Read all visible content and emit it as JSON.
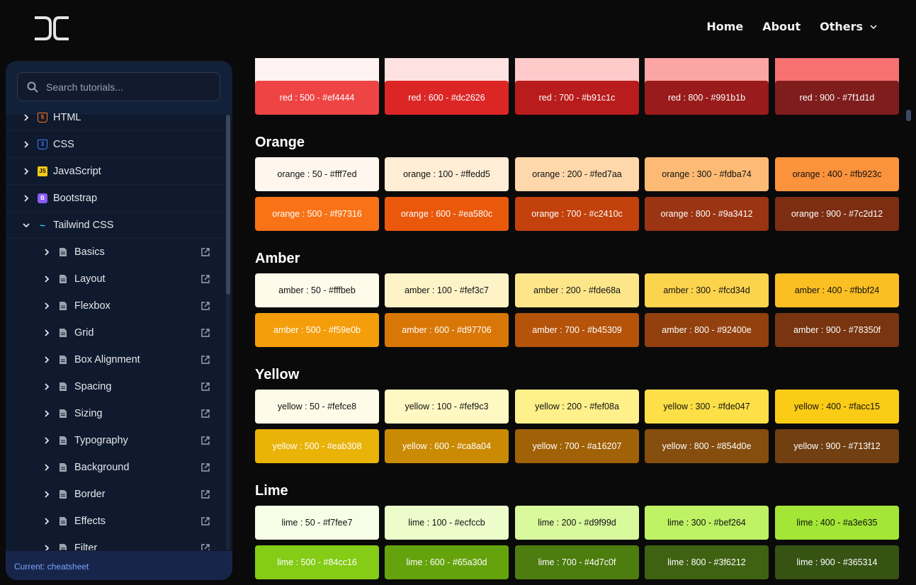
{
  "nav": {
    "home": "Home",
    "about": "About",
    "others": "Others"
  },
  "search": {
    "placeholder": "Search tutorials..."
  },
  "sidebar": {
    "top_items": [
      {
        "label": "HTML",
        "icon": "html5-icon",
        "color": "#f97316"
      },
      {
        "label": "CSS",
        "icon": "css3-icon",
        "color": "#3b82f6"
      },
      {
        "label": "JavaScript",
        "icon": "javascript-icon",
        "color": "#facc15"
      },
      {
        "label": "Bootstrap",
        "icon": "bootstrap-icon",
        "color": "#8b5cf6"
      },
      {
        "label": "Tailwind CSS",
        "icon": "tailwind-icon",
        "color": "#38bdf8"
      }
    ],
    "sub_items": [
      "Basics",
      "Layout",
      "Flexbox",
      "Grid",
      "Box Alignment",
      "Spacing",
      "Sizing",
      "Typography",
      "Background",
      "Border",
      "Effects",
      "Filter"
    ],
    "current": "Current: cheatsheet"
  },
  "palettes": {
    "red": {
      "cells": [
        {
          "label": "",
          "bg": "#fef2f2",
          "fg": "#000"
        },
        {
          "label": "",
          "bg": "#fee2e2",
          "fg": "#000"
        },
        {
          "label": "",
          "bg": "#fecaca",
          "fg": "#000"
        },
        {
          "label": "",
          "bg": "#fca5a5",
          "fg": "#000"
        },
        {
          "label": "",
          "bg": "#f87171",
          "fg": "#000"
        },
        {
          "label": "red : 500 - #ef4444",
          "bg": "#ef4444",
          "fg": "#fff"
        },
        {
          "label": "red : 600 - #dc2626",
          "bg": "#dc2626",
          "fg": "#fff"
        },
        {
          "label": "red : 700 - #b91c1c",
          "bg": "#b91c1c",
          "fg": "#fff"
        },
        {
          "label": "red : 800 - #991b1b",
          "bg": "#991b1b",
          "fg": "#fff"
        },
        {
          "label": "red : 900 - #7f1d1d",
          "bg": "#7f1d1d",
          "fg": "#fff"
        }
      ]
    },
    "orange": {
      "title": "Orange",
      "cells": [
        {
          "label": "orange : 50 - #fff7ed",
          "bg": "#fff7ed",
          "fg": "#111"
        },
        {
          "label": "orange : 100 - #ffedd5",
          "bg": "#ffedd5",
          "fg": "#111"
        },
        {
          "label": "orange : 200 - #fed7aa",
          "bg": "#fed7aa",
          "fg": "#111"
        },
        {
          "label": "orange : 300 - #fdba74",
          "bg": "#fdba74",
          "fg": "#111"
        },
        {
          "label": "orange : 400 - #fb923c",
          "bg": "#fb923c",
          "fg": "#111"
        },
        {
          "label": "orange : 500 - #f97316",
          "bg": "#f97316",
          "fg": "#fff"
        },
        {
          "label": "orange : 600 - #ea580c",
          "bg": "#ea580c",
          "fg": "#fff"
        },
        {
          "label": "orange : 700 - #c2410c",
          "bg": "#c2410c",
          "fg": "#fff"
        },
        {
          "label": "orange : 800 - #9a3412",
          "bg": "#9a3412",
          "fg": "#fff"
        },
        {
          "label": "orange : 900 - #7c2d12",
          "bg": "#7c2d12",
          "fg": "#fff"
        }
      ]
    },
    "amber": {
      "title": "Amber",
      "cells": [
        {
          "label": "amber : 50 - #fffbeb",
          "bg": "#fffbeb",
          "fg": "#111"
        },
        {
          "label": "amber : 100 - #fef3c7",
          "bg": "#fef3c7",
          "fg": "#111"
        },
        {
          "label": "amber : 200 - #fde68a",
          "bg": "#fde68a",
          "fg": "#111"
        },
        {
          "label": "amber : 300 - #fcd34d",
          "bg": "#fcd34d",
          "fg": "#111"
        },
        {
          "label": "amber : 400 - #fbbf24",
          "bg": "#fbbf24",
          "fg": "#111"
        },
        {
          "label": "amber : 500 - #f59e0b",
          "bg": "#f59e0b",
          "fg": "#fff"
        },
        {
          "label": "amber : 600 - #d97706",
          "bg": "#d97706",
          "fg": "#fff"
        },
        {
          "label": "amber : 700 - #b45309",
          "bg": "#b45309",
          "fg": "#fff"
        },
        {
          "label": "amber : 800 - #92400e",
          "bg": "#92400e",
          "fg": "#fff"
        },
        {
          "label": "amber : 900 - #78350f",
          "bg": "#78350f",
          "fg": "#fff"
        }
      ]
    },
    "yellow": {
      "title": "Yellow",
      "cells": [
        {
          "label": "yellow : 50 - #fefce8",
          "bg": "#fefce8",
          "fg": "#111"
        },
        {
          "label": "yellow : 100 - #fef9c3",
          "bg": "#fef9c3",
          "fg": "#111"
        },
        {
          "label": "yellow : 200 - #fef08a",
          "bg": "#fef08a",
          "fg": "#111"
        },
        {
          "label": "yellow : 300 - #fde047",
          "bg": "#fde047",
          "fg": "#111"
        },
        {
          "label": "yellow : 400 - #facc15",
          "bg": "#facc15",
          "fg": "#111"
        },
        {
          "label": "yellow : 500 - #eab308",
          "bg": "#eab308",
          "fg": "#fff"
        },
        {
          "label": "yellow : 600 - #ca8a04",
          "bg": "#ca8a04",
          "fg": "#fff"
        },
        {
          "label": "yellow : 700 - #a16207",
          "bg": "#a16207",
          "fg": "#fff"
        },
        {
          "label": "yellow : 800 - #854d0e",
          "bg": "#854d0e",
          "fg": "#fff"
        },
        {
          "label": "yellow : 900 - #713f12",
          "bg": "#713f12",
          "fg": "#fff"
        }
      ]
    },
    "lime": {
      "title": "Lime",
      "cells": [
        {
          "label": "lime : 50 - #f7fee7",
          "bg": "#f7fee7",
          "fg": "#111"
        },
        {
          "label": "lime : 100 - #ecfccb",
          "bg": "#ecfccb",
          "fg": "#111"
        },
        {
          "label": "lime : 200 - #d9f99d",
          "bg": "#d9f99d",
          "fg": "#111"
        },
        {
          "label": "lime : 300 - #bef264",
          "bg": "#bef264",
          "fg": "#111"
        },
        {
          "label": "lime : 400 - #a3e635",
          "bg": "#a3e635",
          "fg": "#111"
        },
        {
          "label": "lime : 500 - #84cc16",
          "bg": "#84cc16",
          "fg": "#fff"
        },
        {
          "label": "lime : 600 - #65a30d",
          "bg": "#65a30d",
          "fg": "#fff"
        },
        {
          "label": "lime : 700 - #4d7c0f",
          "bg": "#4d7c0f",
          "fg": "#fff"
        },
        {
          "label": "lime : 800 - #3f6212",
          "bg": "#3f6212",
          "fg": "#fff"
        },
        {
          "label": "lime : 900 - #365314",
          "bg": "#365314",
          "fg": "#fff"
        }
      ]
    }
  }
}
